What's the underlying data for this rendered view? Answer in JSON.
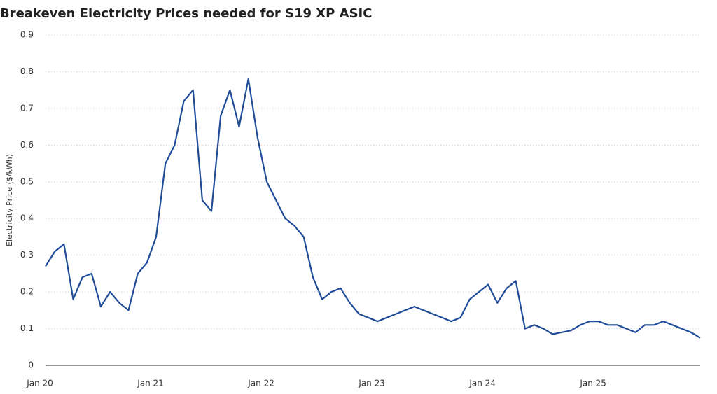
{
  "chart_data": {
    "type": "line",
    "title": "Breakeven Electricity Prices needed for S19 XP ASIC",
    "y_label": "Electricity Price ($/kWh)",
    "categories": [
      "Jan 20",
      null,
      null,
      null,
      null,
      null,
      null,
      null,
      null,
      null,
      null,
      null,
      "Jan 21",
      null,
      null,
      null,
      null,
      null,
      null,
      null,
      null,
      null,
      null,
      null,
      "Jan 22",
      null,
      null,
      null,
      null,
      null,
      null,
      null,
      null,
      null,
      null,
      null,
      "Jan 23",
      null,
      null,
      null,
      null,
      null,
      null,
      null,
      null,
      null,
      null,
      null,
      "Jan 24",
      null,
      null,
      null,
      null,
      null,
      null,
      null,
      null,
      null,
      null,
      null,
      "Jan 25",
      null,
      null,
      null,
      null,
      null,
      null,
      null,
      null,
      null,
      null,
      null
    ],
    "series": [
      {
        "color": "#1f4b99",
        "values": [
          0.27,
          0.31,
          0.33,
          0.18,
          0.24,
          0.25,
          0.16,
          0.2,
          0.17,
          0.15,
          0.25,
          0.28,
          0.35,
          0.55,
          0.6,
          0.72,
          0.75,
          0.45,
          0.42,
          0.68,
          0.75,
          0.65,
          0.78,
          0.62,
          0.5,
          0.45,
          0.4,
          0.38,
          0.35,
          0.24,
          0.18,
          0.2,
          0.21,
          0.17,
          0.14,
          0.13,
          0.12,
          0.13,
          0.14,
          0.15,
          0.16,
          0.15,
          0.14,
          0.13,
          0.12,
          0.13,
          0.18,
          0.2,
          0.22,
          0.17,
          0.21,
          0.23,
          0.1,
          0.11,
          0.1,
          0.085,
          0.09,
          0.095,
          0.11,
          0.12,
          0.12,
          0.11,
          0.11,
          0.1,
          0.09,
          0.11,
          0.11,
          0.12,
          0.11,
          0.1,
          0.09,
          0.075
        ]
      }
    ],
    "ylim": [
      0,
      0.9
    ],
    "yticks": [
      0,
      0.1,
      0.2,
      0.3,
      0.4,
      0.5,
      0.6,
      0.7,
      0.8,
      0.9
    ],
    "grid": true
  }
}
